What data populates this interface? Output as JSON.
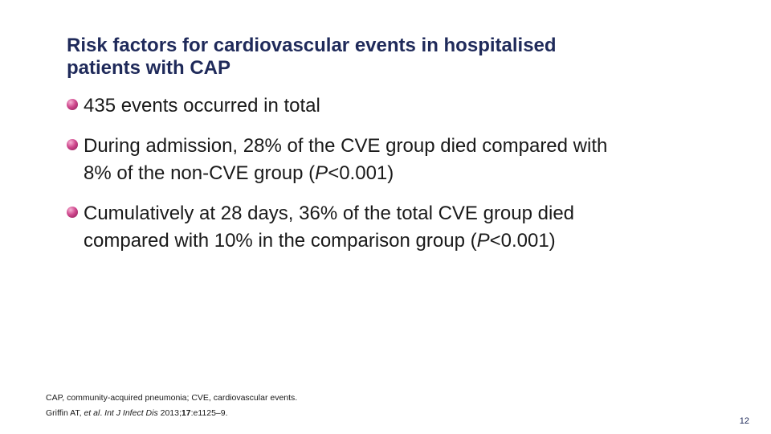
{
  "slide": {
    "title_line1": "Risk factors for cardiovascular events in hospitalised",
    "title_line2": "patients with CAP",
    "bullets": [
      {
        "text": "435 events occurred in total"
      },
      {
        "line1": "During admission, 28% of the CVE group died compared with",
        "line2_pre": "8% of the non-CVE group (",
        "line2_italic": "P",
        "line2_post": "<0.001)"
      },
      {
        "line1": "Cumulatively at 28 days, 36% of the total CVE group died",
        "line2_pre": "compared with 10% in the comparison group (",
        "line2_italic": "P",
        "line2_post": "<0.001)"
      }
    ],
    "footnotes": {
      "abbreviations": "CAP, community-acquired pneumonia; CVE, cardiovascular events.",
      "ref_authors": "Griffin AT, ",
      "ref_etal": "et al",
      "ref_dot": ". ",
      "ref_journal": "Int J Infect Dis",
      "ref_year": " 2013;",
      "ref_volume": "17",
      "ref_pages": ":e1125–9."
    },
    "page_number": "12",
    "colors": {
      "title": "#1f2a5a",
      "bullet": "#d0498e",
      "text": "#1a1a1a"
    }
  }
}
